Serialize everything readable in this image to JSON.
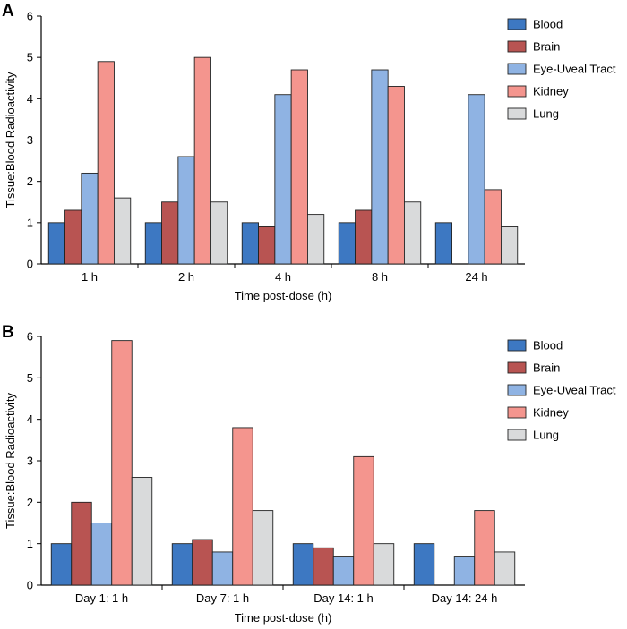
{
  "chart_data": [
    {
      "panel": "A",
      "type": "bar",
      "categories": [
        "1 h",
        "2 h",
        "4 h",
        "8 h",
        "24 h"
      ],
      "series": [
        {
          "name": "Blood",
          "color": "#3d78c2",
          "values": [
            1.0,
            1.0,
            1.0,
            1.0,
            1.0
          ]
        },
        {
          "name": "Brain",
          "color": "#b85452",
          "values": [
            1.3,
            1.5,
            0.9,
            1.3,
            null
          ]
        },
        {
          "name": "Eye-Uveal Tract",
          "color": "#8fb3e3",
          "values": [
            2.2,
            2.6,
            4.1,
            4.7,
            4.1
          ]
        },
        {
          "name": "Kidney",
          "color": "#f4958e",
          "values": [
            4.9,
            5.0,
            4.7,
            4.3,
            1.8
          ]
        },
        {
          "name": "Lung",
          "color": "#d9dadb",
          "values": [
            1.6,
            1.5,
            1.2,
            1.5,
            0.9
          ]
        }
      ],
      "xlabel": "Time post-dose (h)",
      "ylabel": "Tissue:Blood Radioactivity",
      "ylim": [
        0,
        6
      ],
      "yticks": [
        "0",
        "1",
        "2",
        "3",
        "4",
        "5",
        "6"
      ],
      "legend": "top-right"
    },
    {
      "panel": "B",
      "type": "bar",
      "categories": [
        "Day 1: 1 h",
        "Day 7: 1 h",
        "Day 14: 1 h",
        "Day 14: 24 h"
      ],
      "series": [
        {
          "name": "Blood",
          "color": "#3d78c2",
          "values": [
            1.0,
            1.0,
            1.0,
            1.0
          ]
        },
        {
          "name": "Brain",
          "color": "#b85452",
          "values": [
            2.0,
            1.1,
            0.9,
            null
          ]
        },
        {
          "name": "Eye-Uveal Tract",
          "color": "#8fb3e3",
          "values": [
            1.5,
            0.8,
            0.7,
            0.7
          ]
        },
        {
          "name": "Kidney",
          "color": "#f4958e",
          "values": [
            5.9,
            3.8,
            3.1,
            1.8
          ]
        },
        {
          "name": "Lung",
          "color": "#d9dadb",
          "values": [
            2.6,
            1.8,
            1.0,
            0.8
          ]
        }
      ],
      "xlabel": "Time post-dose (h)",
      "ylabel": "Tissue:Blood Radioactivity",
      "ylim": [
        0,
        6
      ],
      "yticks": [
        "0",
        "1",
        "2",
        "3",
        "4",
        "5",
        "6"
      ],
      "legend": "top-right"
    }
  ]
}
